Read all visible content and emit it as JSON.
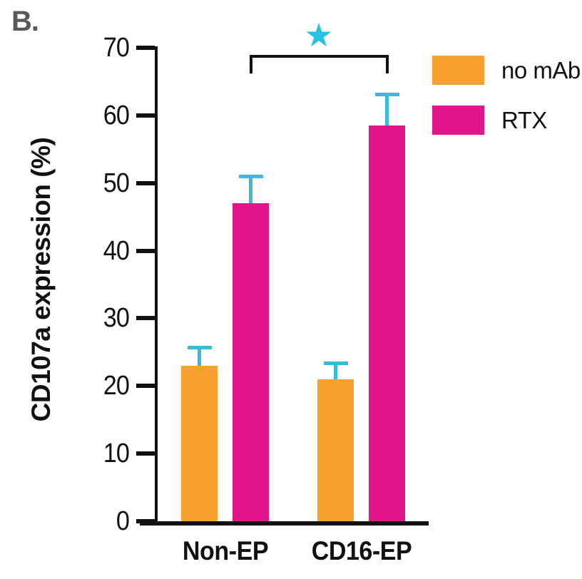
{
  "panel_label": "B.",
  "colors": {
    "orange": "#F8A12E",
    "magenta": "#E2168C",
    "error_bar": "#3BBBD9",
    "star": "#29C1E1",
    "axis": "#111111",
    "panel_label": "#58595B"
  },
  "legend": {
    "position": "top-right",
    "items": [
      {
        "label": "no mAb",
        "color": "#F8A12E"
      },
      {
        "label": "RTX",
        "color": "#E2168C"
      }
    ]
  },
  "chart_data": {
    "type": "bar",
    "title": "",
    "xlabel": "",
    "ylabel": "CD107a expression (%)",
    "ylim": [
      0,
      70
    ],
    "yticks": [
      0,
      10,
      20,
      30,
      40,
      50,
      60,
      70
    ],
    "grid": false,
    "categories": [
      "Non-EP",
      "CD16-EP"
    ],
    "series": [
      {
        "name": "no mAb",
        "color": "#F8A12E",
        "values": [
          23,
          21
        ],
        "errors": [
          2.7,
          2.4
        ]
      },
      {
        "name": "RTX",
        "color": "#E2168C",
        "values": [
          47,
          58.5
        ],
        "errors": [
          4.0,
          4.6
        ]
      }
    ],
    "error_bar_color": "#3BBBD9",
    "significance": {
      "symbol": "★",
      "color": "#29C1E1",
      "between_category_indices": [
        0,
        1
      ],
      "series": "RTX"
    },
    "legend_position": "top-right"
  }
}
